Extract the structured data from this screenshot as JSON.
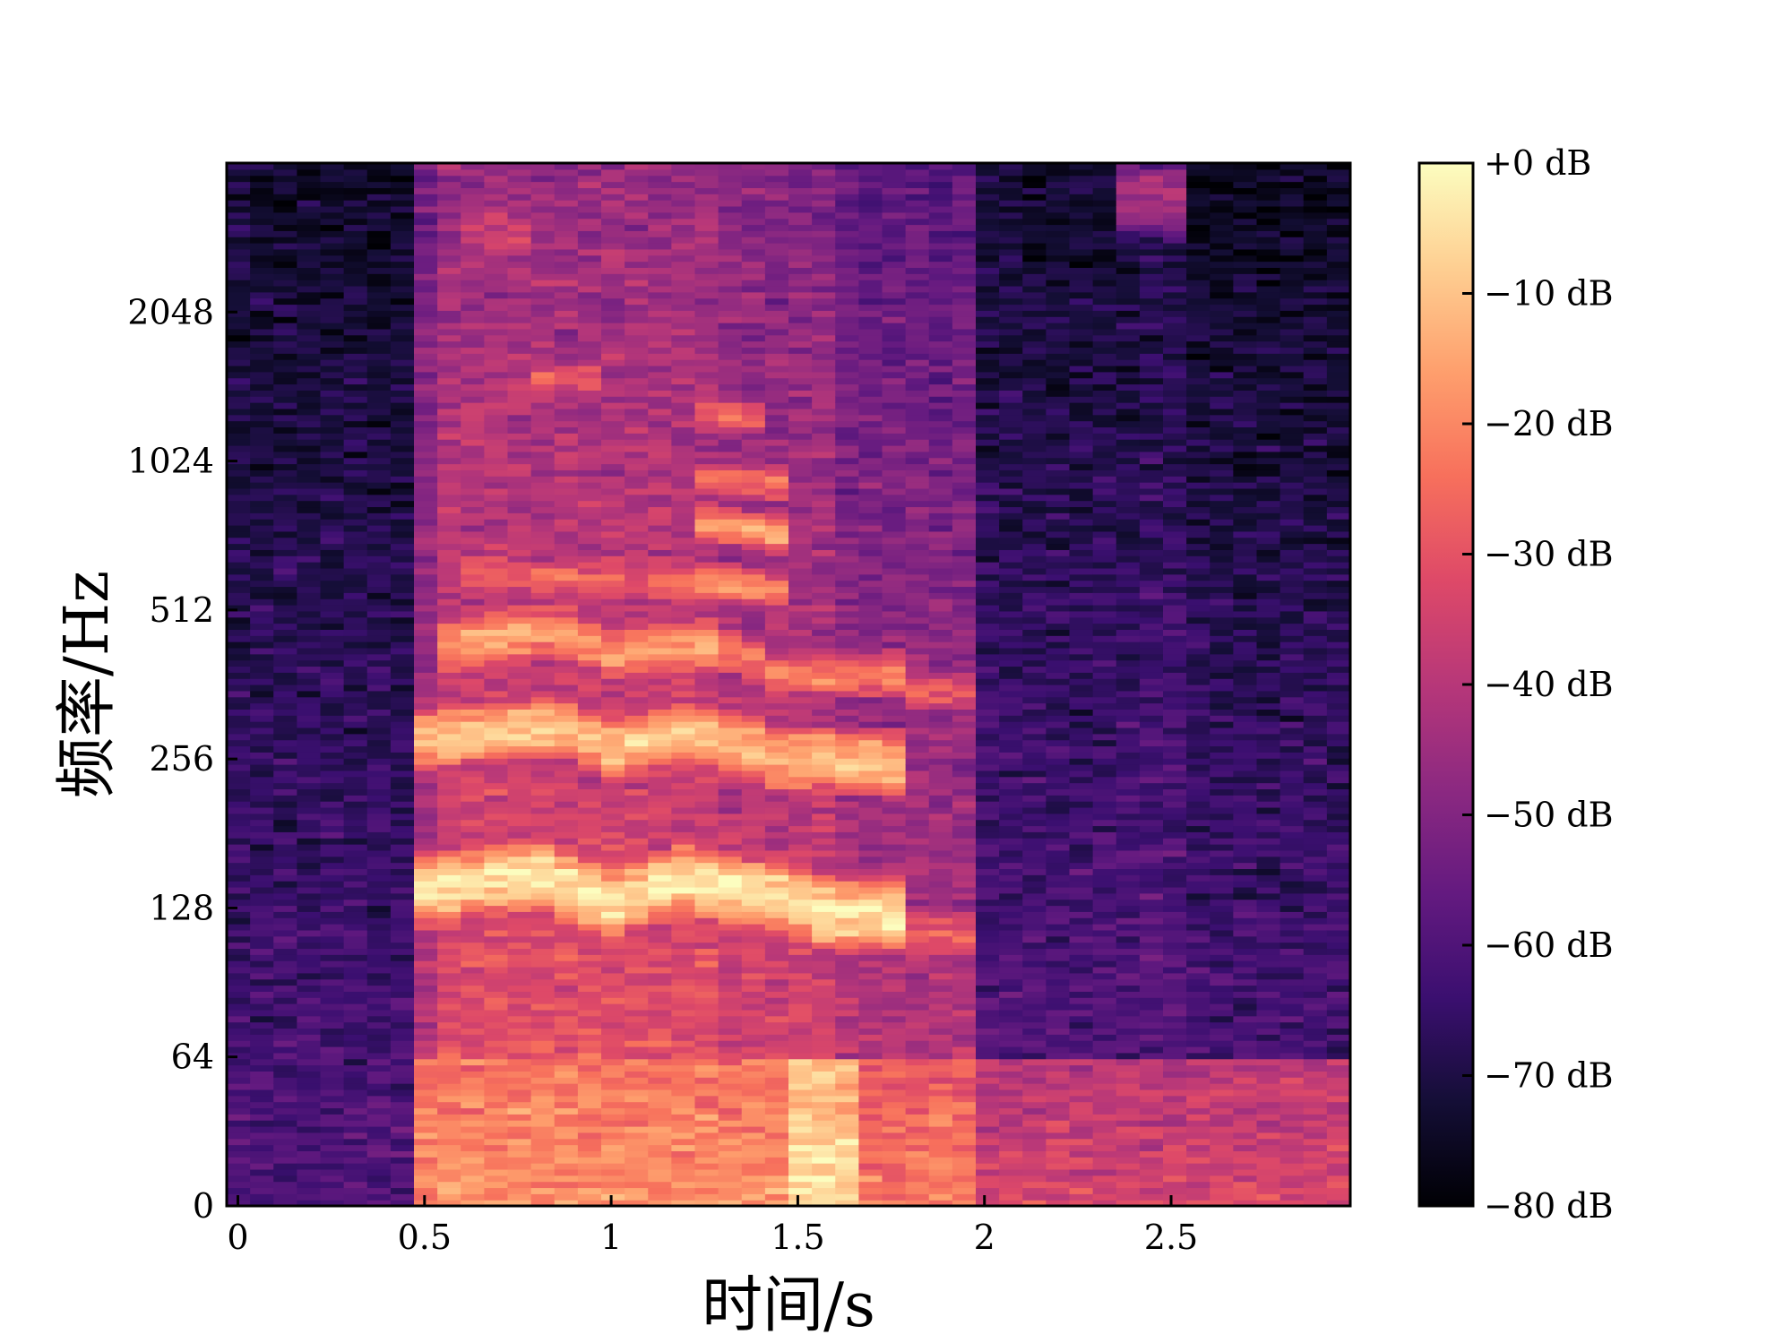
{
  "chart_data": {
    "type": "heatmap",
    "title": "",
    "xlabel": "时间/s",
    "ylabel": "频率/Hz",
    "x_ticks": [
      {
        "value": 0,
        "label": "0"
      },
      {
        "value": 0.5,
        "label": "0.5"
      },
      {
        "value": 1,
        "label": "1"
      },
      {
        "value": 1.5,
        "label": "1.5"
      },
      {
        "value": 2,
        "label": "2"
      },
      {
        "value": 2.5,
        "label": "2.5"
      }
    ],
    "xlim": [
      -0.03,
      2.98
    ],
    "y_scale": "symlog (base 2)",
    "y_ticks": [
      {
        "value": 0,
        "label": "0"
      },
      {
        "value": 64,
        "label": "64"
      },
      {
        "value": 128,
        "label": "128"
      },
      {
        "value": 256,
        "label": "256"
      },
      {
        "value": 512,
        "label": "512"
      },
      {
        "value": 1024,
        "label": "1024"
      },
      {
        "value": 2048,
        "label": "2048"
      }
    ],
    "ylim_octaves_above_64": [
      -1.0,
      6.0
    ],
    "colormap": "magma",
    "colorbar": {
      "min_db": -80,
      "max_db": 0,
      "ticks": [
        {
          "value": 0,
          "label": "+0 dB"
        },
        {
          "value": -10,
          "label": "−10 dB"
        },
        {
          "value": -20,
          "label": "−20 dB"
        },
        {
          "value": -30,
          "label": "−30 dB"
        },
        {
          "value": -40,
          "label": "−40 dB"
        },
        {
          "value": -50,
          "label": "−50 dB"
        },
        {
          "value": -60,
          "label": "−60 dB"
        },
        {
          "value": -70,
          "label": "−70 dB"
        },
        {
          "value": -80,
          "label": "−80 dB"
        }
      ]
    },
    "segments": [
      {
        "t0": -0.03,
        "t1": 0.48,
        "base_db": -66,
        "tilt": 14
      },
      {
        "t0": 0.48,
        "t1": 0.55,
        "base_db": -44,
        "tilt": 16
      },
      {
        "t0": 0.55,
        "t1": 1.3,
        "base_db": -36,
        "tilt": 18
      },
      {
        "t0": 1.3,
        "t1": 1.6,
        "base_db": -40,
        "tilt": 18
      },
      {
        "t0": 1.6,
        "t1": 1.98,
        "base_db": -46,
        "tilt": 20
      },
      {
        "t0": 1.98,
        "t1": 2.4,
        "base_db": -64,
        "tilt": 16
      },
      {
        "t0": 2.4,
        "t1": 2.55,
        "base_db": -62,
        "tilt": 14
      },
      {
        "t0": 2.55,
        "t1": 2.98,
        "base_db": -66,
        "tilt": 16
      }
    ],
    "harmonics": [
      {
        "t0": 0.5,
        "t1": 1.77,
        "f": [
          [
            0.5,
            140
          ],
          [
            0.8,
            150
          ],
          [
            1.0,
            132
          ],
          [
            1.2,
            146
          ],
          [
            1.45,
            134
          ],
          [
            1.6,
            124
          ],
          [
            1.77,
            124
          ]
        ],
        "db": -4,
        "width": 0.2
      },
      {
        "t0": 1.77,
        "t1": 1.96,
        "f": [
          [
            1.77,
            115
          ],
          [
            1.96,
            112
          ]
        ],
        "db": -28,
        "width": 0.2
      },
      {
        "t0": 0.5,
        "t1": 1.77,
        "f": [
          [
            0.5,
            280
          ],
          [
            0.85,
            300
          ],
          [
            1.0,
            268
          ],
          [
            1.2,
            292
          ],
          [
            1.45,
            258
          ],
          [
            1.77,
            250
          ]
        ],
        "db": -10,
        "width": 0.18
      },
      {
        "t0": 0.55,
        "t1": 1.3,
        "f": [
          [
            0.55,
            430
          ],
          [
            0.85,
            470
          ],
          [
            1.0,
            420
          ],
          [
            1.3,
            440
          ]
        ],
        "db": -16,
        "width": 0.17
      },
      {
        "t0": 1.3,
        "t1": 1.8,
        "f": [
          [
            1.3,
            430
          ],
          [
            1.45,
            380
          ],
          [
            1.8,
            380
          ]
        ],
        "db": -22,
        "width": 0.15
      },
      {
        "t0": 1.77,
        "t1": 1.96,
        "f": [
          [
            1.77,
            355
          ],
          [
            1.96,
            350
          ]
        ],
        "db": -30,
        "width": 0.15
      },
      {
        "t0": 0.6,
        "t1": 1.3,
        "f": [
          [
            0.6,
            610
          ],
          [
            1.3,
            570
          ]
        ],
        "db": -26,
        "width": 0.14
      },
      {
        "t0": 1.2,
        "t1": 1.45,
        "f": [
          [
            1.2,
            590
          ],
          [
            1.45,
            560
          ]
        ],
        "db": -18,
        "width": 0.12
      },
      {
        "t0": 1.2,
        "t1": 1.45,
        "f": [
          [
            1.2,
            780
          ],
          [
            1.45,
            730
          ]
        ],
        "db": -14,
        "width": 0.11
      },
      {
        "t0": 1.2,
        "t1": 1.45,
        "f": [
          [
            1.2,
            950
          ],
          [
            1.45,
            920
          ]
        ],
        "db": -24,
        "width": 0.12
      },
      {
        "t0": 0.8,
        "t1": 0.95,
        "f": [
          [
            0.8,
            1500
          ],
          [
            0.95,
            1500
          ]
        ],
        "db": -28,
        "width": 0.12
      },
      {
        "t0": 1.2,
        "t1": 1.4,
        "f": [
          [
            1.2,
            1300
          ],
          [
            1.4,
            1250
          ]
        ],
        "db": -28,
        "width": 0.12
      },
      {
        "t0": 0.6,
        "t1": 0.8,
        "f": [
          [
            0.6,
            3000
          ],
          [
            0.8,
            3000
          ]
        ],
        "db": -36,
        "width": 0.3
      },
      {
        "t0": 2.38,
        "t1": 2.52,
        "f": [
          [
            2.38,
            3500
          ],
          [
            2.52,
            3500
          ]
        ],
        "db": -42,
        "width": 0.25
      }
    ],
    "lowband": [
      {
        "t0": 0.5,
        "t1": 1.5,
        "db": -24
      },
      {
        "t0": 1.5,
        "t1": 1.65,
        "db": -12
      },
      {
        "t0": 1.65,
        "t1": 2.0,
        "db": -28
      },
      {
        "t0": 2.0,
        "t1": 2.98,
        "db": -40
      }
    ]
  }
}
